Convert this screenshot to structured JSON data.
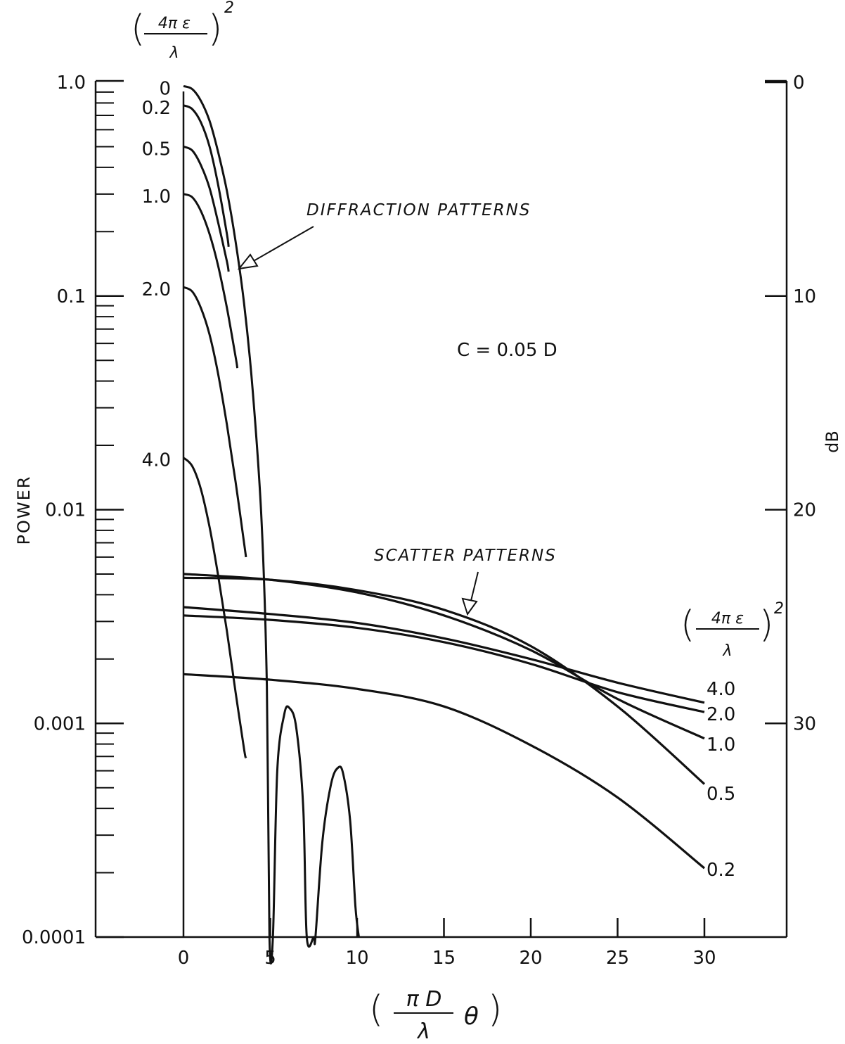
{
  "chart_data": {
    "type": "line",
    "title": "",
    "xlabel": "( πD/λ θ )",
    "xlabel_parts": {
      "num": "π D",
      "den": "λ",
      "var": "θ",
      "open": "(",
      "close": ")"
    },
    "ylabel": "POWER",
    "ylabel_right": "dB",
    "yscale": "log",
    "xlim": [
      -5,
      35
    ],
    "ylim": [
      0.0001,
      1.0
    ],
    "y2lim": [
      0,
      40
    ],
    "grid": false,
    "x_ticks": [
      0,
      5,
      10,
      15,
      20,
      25,
      30
    ],
    "x_tick_labels": [
      "0",
      "5",
      "10",
      "15",
      "20",
      "25",
      "30"
    ],
    "y_tick_labels": [
      {
        "value": 1.0,
        "label": "1.0"
      },
      {
        "value": 0.1,
        "label": "0.1"
      },
      {
        "value": 0.01,
        "label": "0.01"
      },
      {
        "value": 0.001,
        "label": "0.001"
      },
      {
        "value": 0.0001,
        "label": "0.0001"
      }
    ],
    "y2_tick_labels": [
      {
        "value": 0,
        "label": "0"
      },
      {
        "value": 10,
        "label": "10"
      },
      {
        "value": 20,
        "label": "20"
      },
      {
        "value": 30,
        "label": "30"
      }
    ],
    "legend_header": {
      "num": "4π ε",
      "den": "λ",
      "exp": "2",
      "open": "(",
      "close": ")"
    },
    "annotations": [
      {
        "text": "DIFFRACTION PATTERNS",
        "arrow_to": {
          "x": 3.3,
          "y": 0.14
        }
      },
      {
        "text": "SCATTER PATTERNS",
        "arrow_to": {
          "x": 16.5,
          "y": 0.0027
        }
      },
      {
        "text": "C = 0.05 D"
      }
    ],
    "diffraction_series": [
      {
        "name": "0",
        "x": [
          0,
          0.5,
          1,
          1.5,
          2,
          2.5,
          3,
          3.5,
          4,
          4.5,
          4.8,
          4.95,
          5.15,
          5.4,
          5.8,
          6.1,
          6.5,
          6.9,
          7.1,
          7.5,
          7.6,
          8.0,
          8.5,
          8.9,
          9.2,
          9.6,
          9.9,
          10.1
        ],
        "y": [
          0.96,
          0.93,
          0.82,
          0.66,
          0.47,
          0.31,
          0.18,
          0.091,
          0.035,
          0.0088,
          0.0015,
          0.0001,
          0.0001,
          0.0006,
          0.0011,
          0.00118,
          0.00095,
          0.0004,
          0.0001,
          0.0001,
          0.0001,
          0.00028,
          0.00052,
          0.00062,
          0.00058,
          0.00035,
          0.00014,
          0.0001
        ]
      },
      {
        "name": "0.2",
        "x": [
          0,
          0.5,
          1,
          1.5,
          2,
          2.5,
          2.6
        ],
        "y": [
          0.78,
          0.75,
          0.65,
          0.5,
          0.33,
          0.195,
          0.17
        ]
      },
      {
        "name": "0.5",
        "x": [
          0,
          0.5,
          1,
          1.5,
          2,
          2.5,
          2.6
        ],
        "y": [
          0.5,
          0.48,
          0.41,
          0.32,
          0.22,
          0.145,
          0.13
        ]
      },
      {
        "name": "1.0",
        "x": [
          0,
          0.5,
          1,
          1.5,
          2,
          2.5,
          3,
          3.1
        ],
        "y": [
          0.3,
          0.29,
          0.25,
          0.195,
          0.138,
          0.088,
          0.052,
          0.046
        ]
      },
      {
        "name": "2.0",
        "x": [
          0,
          0.5,
          1,
          1.5,
          2,
          2.5,
          3,
          3.5,
          3.6
        ],
        "y": [
          0.11,
          0.105,
          0.088,
          0.066,
          0.043,
          0.025,
          0.0135,
          0.0069,
          0.006
        ]
      },
      {
        "name": "4.0",
        "x": [
          0,
          0.5,
          1,
          1.5,
          2,
          2.5,
          3,
          3.5,
          3.6
        ],
        "y": [
          0.0175,
          0.016,
          0.0125,
          0.0083,
          0.0049,
          0.0027,
          0.0014,
          0.00075,
          0.00069
        ]
      }
    ],
    "scatter_series": [
      {
        "name": "4.0",
        "x": [
          0,
          5,
          10,
          15,
          20,
          25,
          30
        ],
        "y": [
          0.0035,
          0.00325,
          0.00295,
          0.0025,
          0.002,
          0.00155,
          0.00125
        ]
      },
      {
        "name": "2.0",
        "x": [
          0,
          5,
          10,
          15,
          20,
          25,
          30
        ],
        "y": [
          0.0032,
          0.00305,
          0.0028,
          0.0024,
          0.0019,
          0.0014,
          0.00113
        ]
      },
      {
        "name": "1.0",
        "x": [
          0,
          5,
          10,
          15,
          20,
          25,
          30
        ],
        "y": [
          0.005,
          0.0047,
          0.0041,
          0.0032,
          0.0022,
          0.0013,
          0.00085
        ]
      },
      {
        "name": "0.5",
        "x": [
          0,
          5,
          10,
          15,
          20,
          25,
          30
        ],
        "y": [
          0.0048,
          0.0047,
          0.0042,
          0.0034,
          0.0023,
          0.0012,
          0.00052
        ]
      },
      {
        "name": "0.2",
        "x": [
          0,
          5,
          10,
          15,
          20,
          25,
          30
        ],
        "y": [
          0.0017,
          0.0016,
          0.00145,
          0.0012,
          0.00079,
          0.00045,
          0.00021
        ]
      }
    ]
  }
}
